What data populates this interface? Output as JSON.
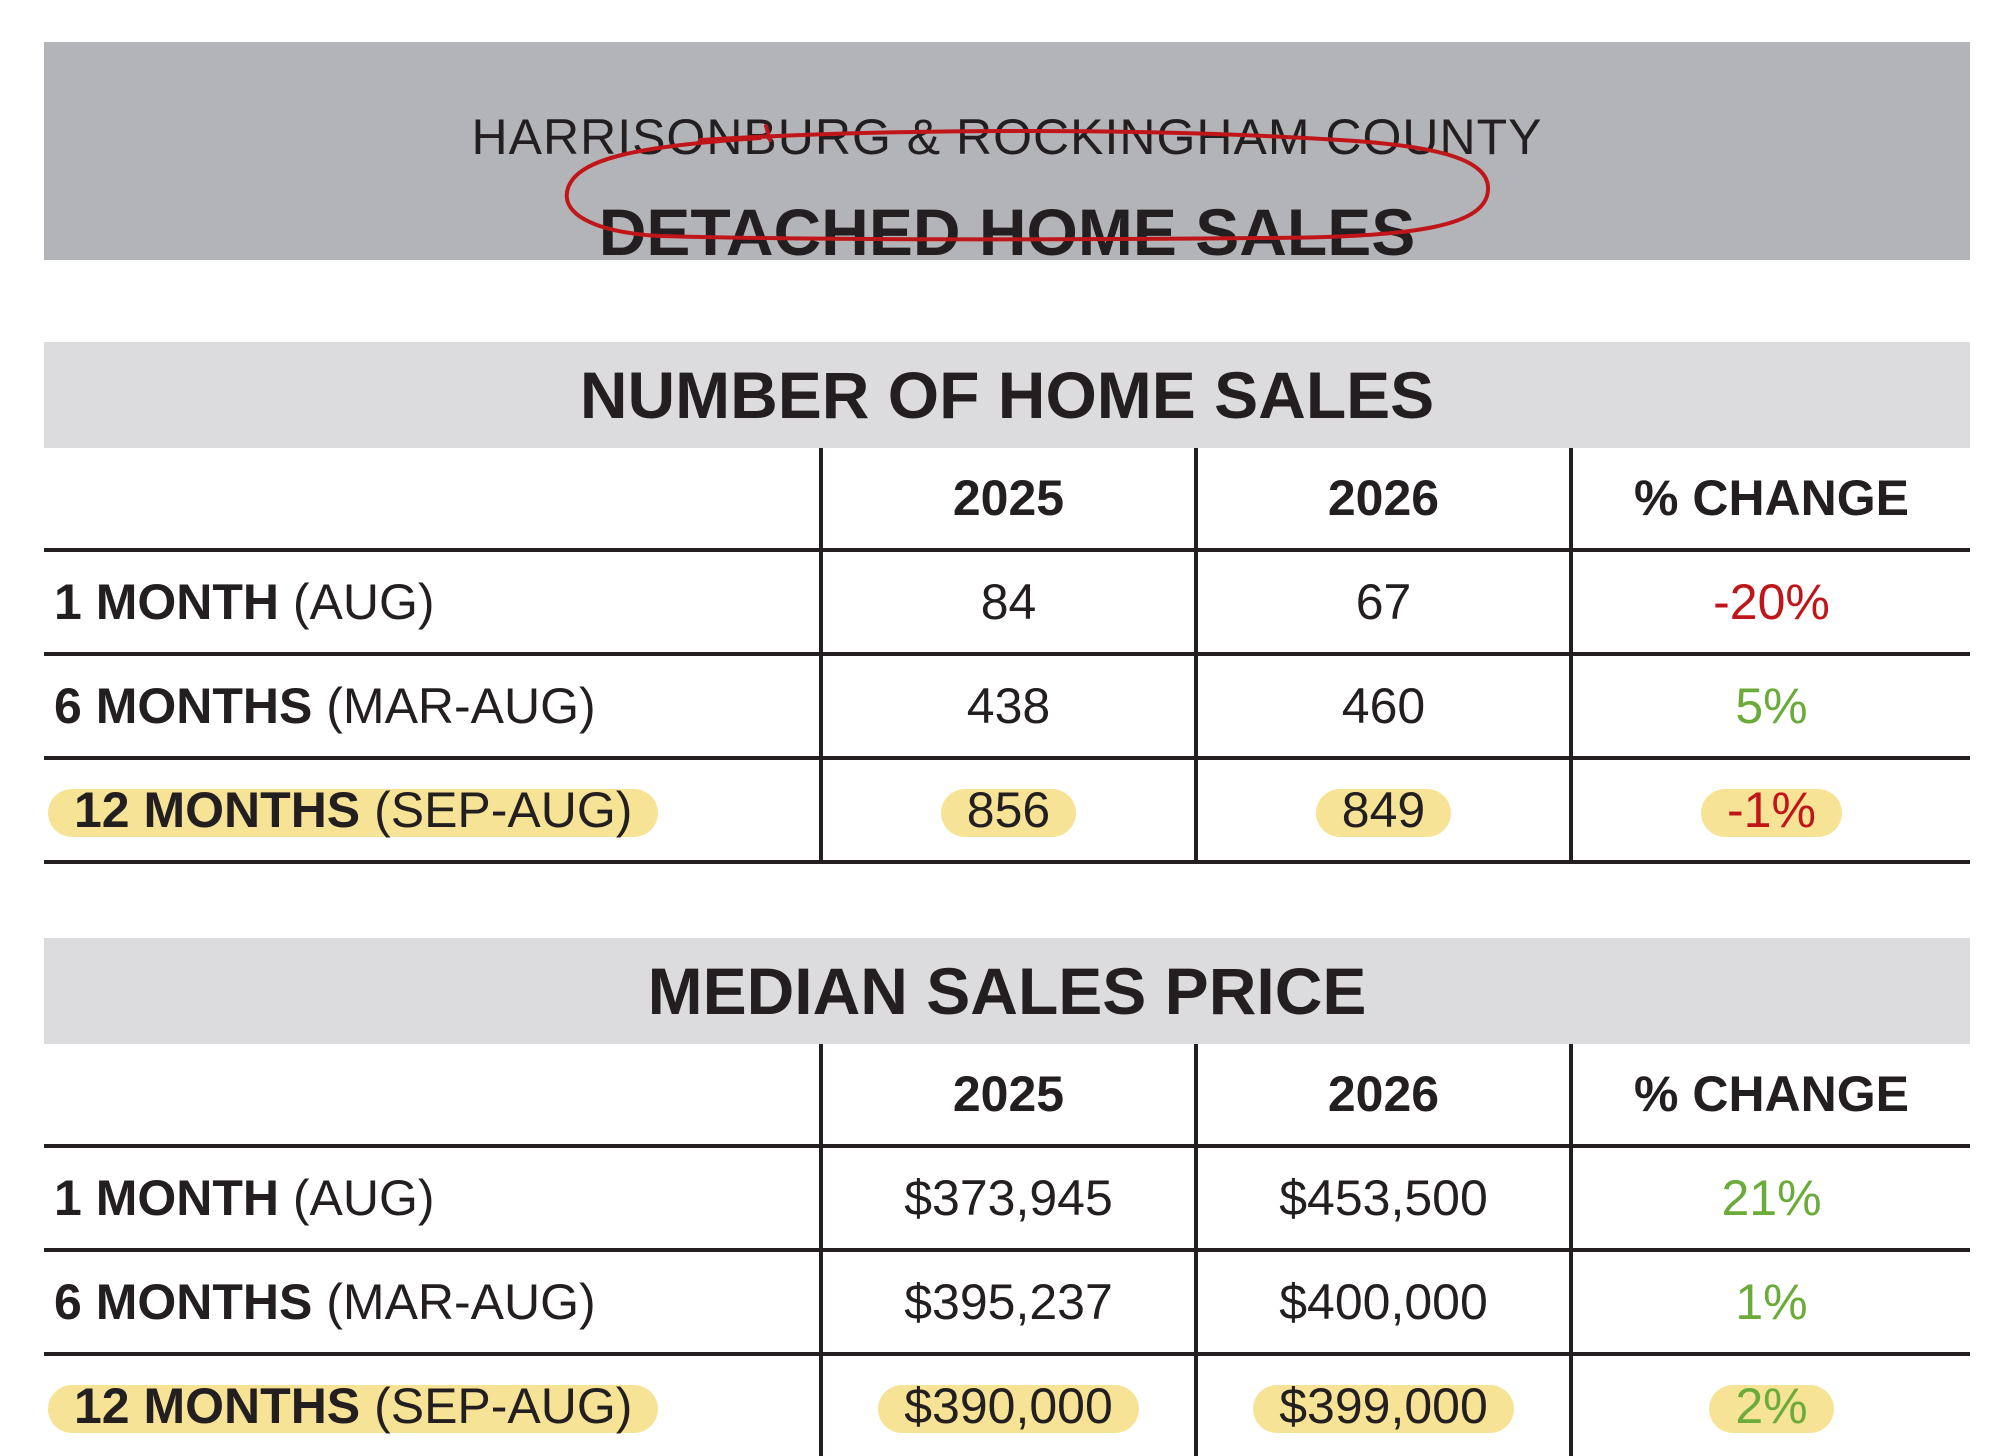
{
  "header": {
    "subtitle": "HARRISONBURG & ROCKINGHAM COUNTY",
    "title": "DETACHED HOME SALES"
  },
  "tables": [
    {
      "title": "NUMBER OF HOME SALES",
      "columns": [
        "",
        "2025",
        "2026",
        "% CHANGE"
      ],
      "rows": [
        {
          "label_bold": "1 MONTH",
          "label_rest": "(AUG)",
          "v2025": "84",
          "v2026": "67",
          "change": "-20%",
          "change_color": "#c0161a",
          "highlighted": false
        },
        {
          "label_bold": "6 MONTHS",
          "label_rest": "(MAR-AUG)",
          "v2025": "438",
          "v2026": "460",
          "change": "5%",
          "change_color": "#6aab3a",
          "highlighted": false
        },
        {
          "label_bold": "12 MONTHS",
          "label_rest": "(SEP-AUG)",
          "v2025": "856",
          "v2026": "849",
          "change": "-1%",
          "change_color": "#c0161a",
          "highlighted": true
        }
      ]
    },
    {
      "title": "MEDIAN SALES PRICE",
      "columns": [
        "",
        "2025",
        "2026",
        "% CHANGE"
      ],
      "rows": [
        {
          "label_bold": "1 MONTH",
          "label_rest": "(AUG)",
          "v2025": "$373,945",
          "v2026": "$453,500",
          "change": "21%",
          "change_color": "#6aab3a",
          "highlighted": false
        },
        {
          "label_bold": "6 MONTHS",
          "label_rest": "(MAR-AUG)",
          "v2025": "$395,237",
          "v2026": "$400,000",
          "change": "1%",
          "change_color": "#6aab3a",
          "highlighted": false
        },
        {
          "label_bold": "12 MONTHS",
          "label_rest": "(SEP-AUG)",
          "v2025": "$390,000",
          "v2026": "$399,000",
          "change": "2%",
          "change_color": "#6aab3a",
          "highlighted": true
        }
      ]
    }
  ],
  "colors": {
    "banner_bg": "#b3b4b7",
    "section_bg": "#dcdcde",
    "negative": "#c0161a",
    "positive": "#6aab3a",
    "highlight": "#f6e28f",
    "annotation_circle": "#c0161a"
  }
}
